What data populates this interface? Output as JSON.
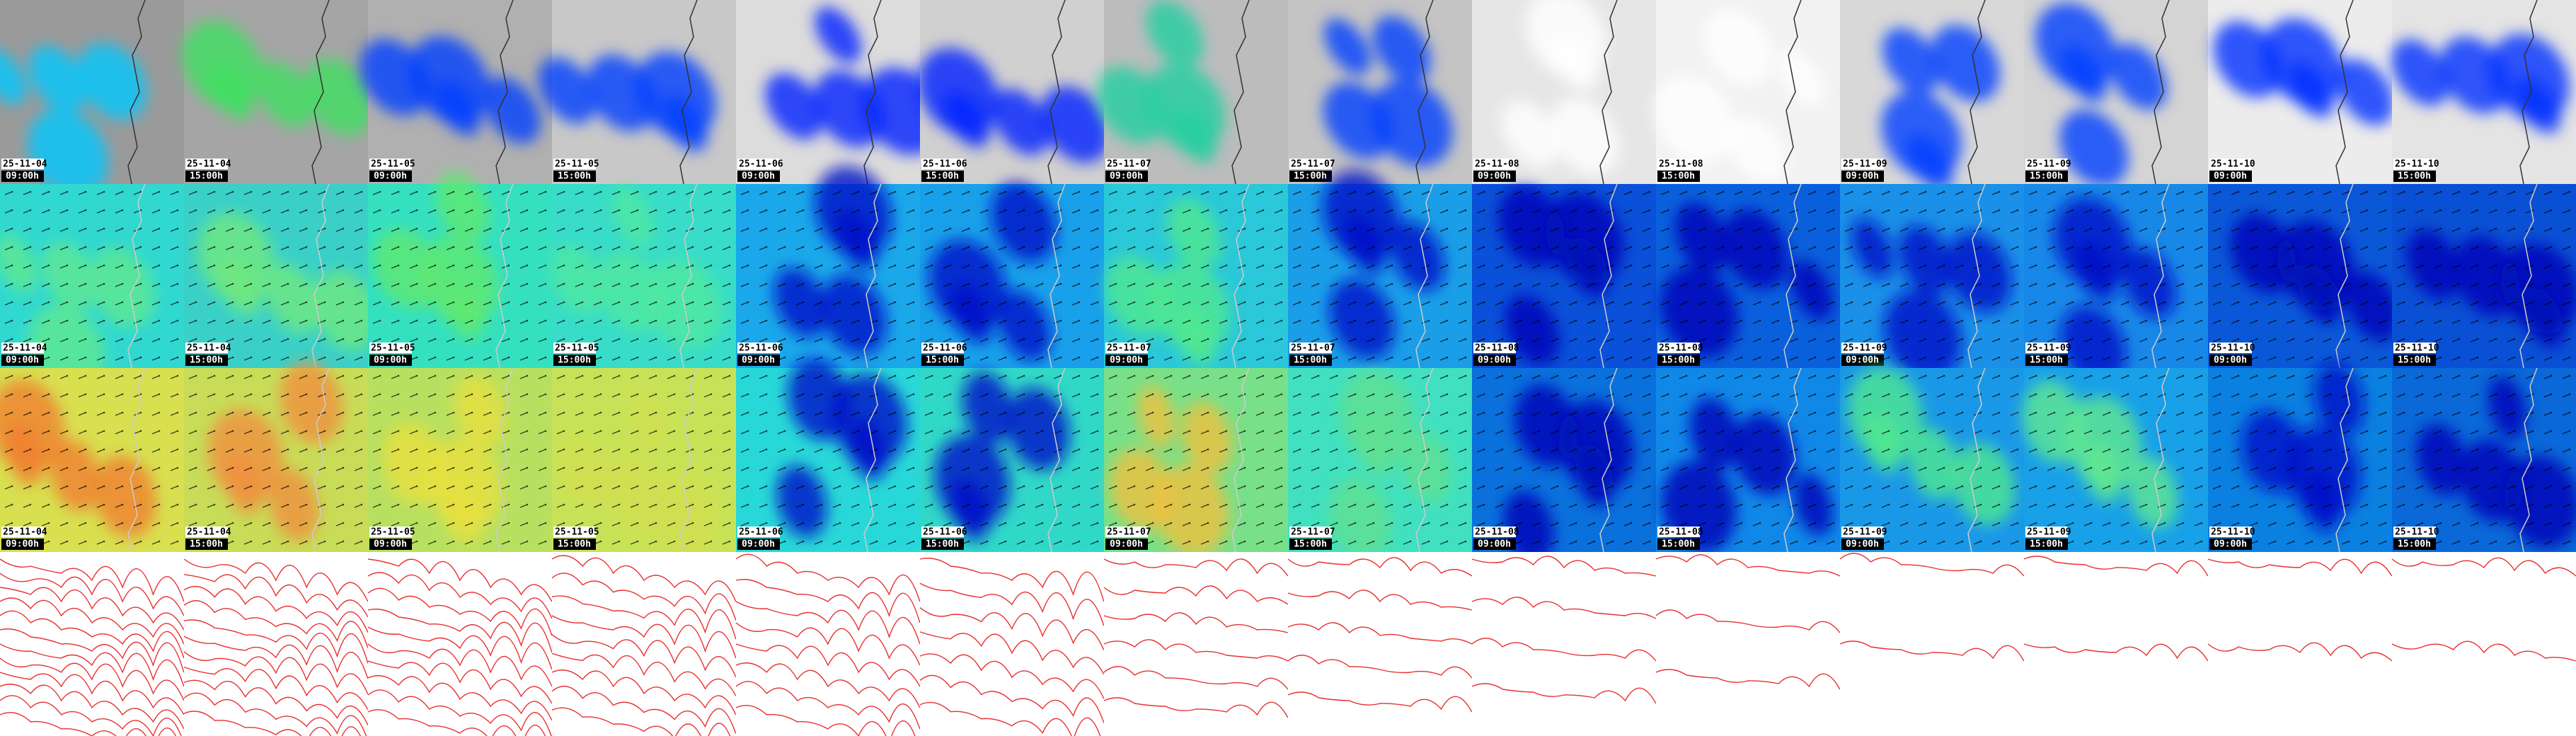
{
  "columns": [
    {
      "date": "25-11-04",
      "time": "09:00h"
    },
    {
      "date": "25-11-04",
      "time": "15:00h"
    },
    {
      "date": "25-11-05",
      "time": "09:00h"
    },
    {
      "date": "25-11-05",
      "time": "15:00h"
    },
    {
      "date": "25-11-06",
      "time": "09:00h"
    },
    {
      "date": "25-11-06",
      "time": "15:00h"
    },
    {
      "date": "25-11-07",
      "time": "09:00h"
    },
    {
      "date": "25-11-07",
      "time": "15:00h"
    },
    {
      "date": "25-11-08",
      "time": "09:00h"
    },
    {
      "date": "25-11-08",
      "time": "15:00h"
    },
    {
      "date": "25-11-09",
      "time": "09:00h"
    },
    {
      "date": "25-11-09",
      "time": "15:00h"
    },
    {
      "date": "25-11-10",
      "time": "09:00h"
    },
    {
      "date": "25-11-10",
      "time": "15:00h"
    }
  ]
}
